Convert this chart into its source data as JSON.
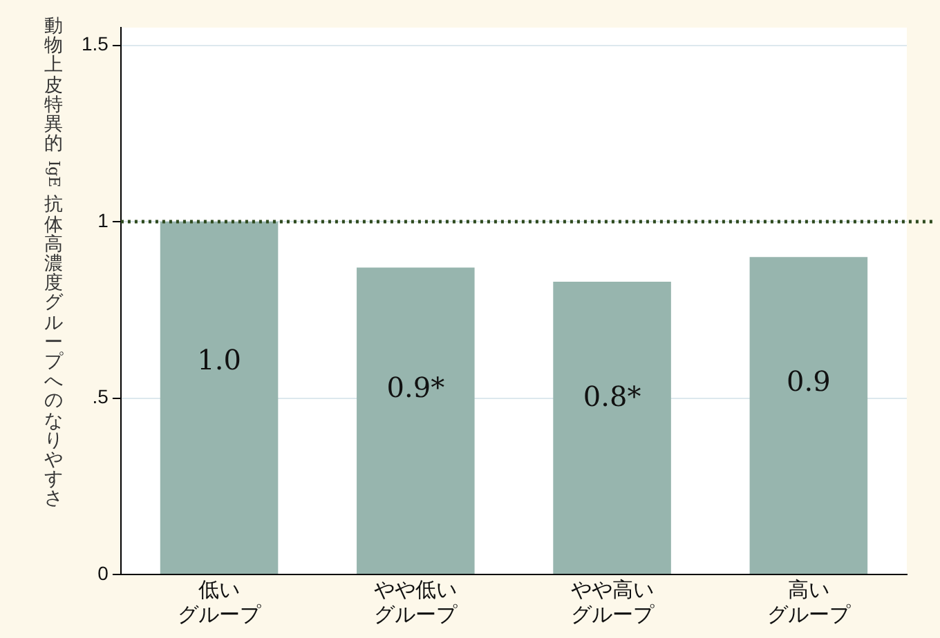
{
  "chart_data": {
    "type": "bar",
    "ylabel": "動物上皮特異的 IgE 抗体高濃度グループへのなりやすさ",
    "categories": [
      "低いグループ",
      "やや低いグループ",
      "やや高いグループ",
      "高いグループ"
    ],
    "values": [
      1.0,
      0.87,
      0.83,
      0.9
    ],
    "value_labels": [
      "1.0",
      "0.9*",
      "0.8*",
      "0.9"
    ],
    "color": "#97b5ae",
    "ylim": [
      0,
      1.55
    ],
    "yticks": [
      0,
      {
        "value": 0.5,
        "label": ".5"
      },
      1,
      1.5
    ],
    "grid": "y",
    "ref_lines": [
      {
        "axis": "y",
        "value": 1,
        "color": "#2e4a1e",
        "line_style": "dotted"
      }
    ],
    "legend": false
  }
}
